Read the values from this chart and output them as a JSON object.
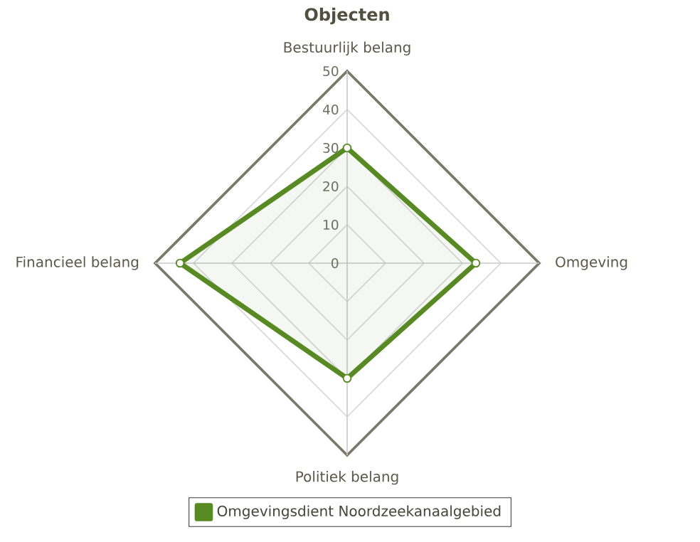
{
  "chart_data": {
    "type": "radar",
    "title": "Objecten",
    "categories": [
      "Bestuurlijk belang",
      "Omgeving",
      "Politiek belang",
      "Financieel belang"
    ],
    "series": [
      {
        "name": "Omgevingsdient Noordzeekanaalgebied",
        "color": "#578a23",
        "values": [
          30,
          33.5,
          30,
          43.5
        ]
      }
    ],
    "ylim": [
      0,
      50
    ],
    "yticks": [
      0,
      10,
      20,
      30,
      40,
      50
    ],
    "grid": true,
    "legend": "bottom",
    "marker": "circle"
  }
}
